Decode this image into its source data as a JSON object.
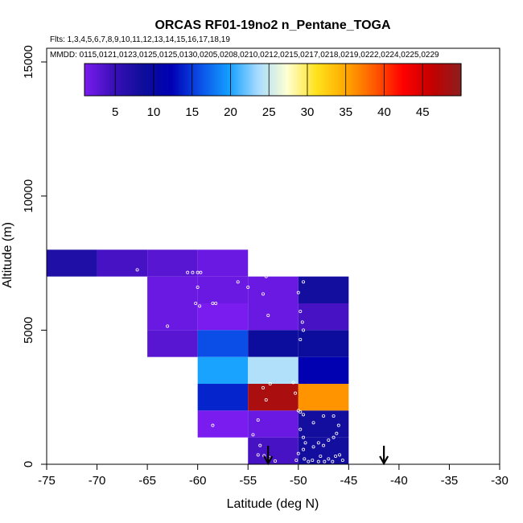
{
  "chart_data": {
    "type": "heatmap",
    "title": "ORCAS RF01-19no2 n_Pentane_TOGA",
    "flights_line": "Flts: 1,3,4,5,6,7,8,9,10,11,12,13,14,15,16,17,18,19",
    "dates_line": "MMDD: 0115,0121,0123,0125,0125,0130,0205,0208,0210,0212,0215,0217,0218,0219,0222,0224,0225,0229",
    "xlabel": "Latitude (deg N)",
    "ylabel": "Altitude (m)",
    "xlim": [
      -75,
      -30
    ],
    "ylim": [
      0,
      15000
    ],
    "xticks": [
      "-75",
      "-70",
      "-65",
      "-60",
      "-55",
      "-50",
      "-45",
      "-40",
      "-35",
      "-30"
    ],
    "yticks": [
      "0",
      "5000",
      "10000",
      "15000"
    ],
    "colorbar": {
      "range": [
        1,
        50
      ],
      "ticks": [
        "5",
        "10",
        "15",
        "20",
        "25",
        "30",
        "35",
        "40",
        "45"
      ],
      "colors": [
        "#7a1cf0",
        "#3a10b8",
        "#0e0e9a",
        "#0000b4",
        "#0b50e8",
        "#14a0ff",
        "#a8dcff",
        "#ffffd2",
        "#ffe21e",
        "#ffaa00",
        "#ff5a00",
        "#ff0000",
        "#c40000",
        "#8c1e1e"
      ]
    },
    "bin_size": {
      "lat": 5,
      "alt": 1000
    },
    "cells": [
      {
        "lat": -72.5,
        "alt": 7500,
        "value": 7
      },
      {
        "lat": -67.5,
        "alt": 7500,
        "value": 4
      },
      {
        "lat": -62.5,
        "alt": 7500,
        "value": 3
      },
      {
        "lat": -57.5,
        "alt": 7500,
        "value": 2
      },
      {
        "lat": -62.5,
        "alt": 6500,
        "value": 2
      },
      {
        "lat": -57.5,
        "alt": 6500,
        "value": 2
      },
      {
        "lat": -52.5,
        "alt": 6500,
        "value": 2
      },
      {
        "lat": -47.5,
        "alt": 6500,
        "value": 8
      },
      {
        "lat": -62.5,
        "alt": 5500,
        "value": 2
      },
      {
        "lat": -57.5,
        "alt": 5500,
        "value": 1
      },
      {
        "lat": -52.5,
        "alt": 5500,
        "value": 2
      },
      {
        "lat": -47.5,
        "alt": 5500,
        "value": 4
      },
      {
        "lat": -62.5,
        "alt": 4500,
        "value": 3
      },
      {
        "lat": -57.5,
        "alt": 4500,
        "value": 16
      },
      {
        "lat": -52.5,
        "alt": 4500,
        "value": 9
      },
      {
        "lat": -47.5,
        "alt": 4500,
        "value": 9
      },
      {
        "lat": -57.5,
        "alt": 3500,
        "value": 20
      },
      {
        "lat": -52.5,
        "alt": 3500,
        "value": 24
      },
      {
        "lat": -47.5,
        "alt": 3500,
        "value": 12
      },
      {
        "lat": -57.5,
        "alt": 2500,
        "value": 14
      },
      {
        "lat": -52.5,
        "alt": 2500,
        "value": 48
      },
      {
        "lat": -47.5,
        "alt": 2500,
        "value": 36
      },
      {
        "lat": -57.5,
        "alt": 1500,
        "value": 1
      },
      {
        "lat": -52.5,
        "alt": 1500,
        "value": 2
      },
      {
        "lat": -47.5,
        "alt": 1500,
        "value": 8
      },
      {
        "lat": -52.5,
        "alt": 500,
        "value": 4
      },
      {
        "lat": -47.5,
        "alt": 500,
        "value": 8
      }
    ],
    "points": [
      [
        -66.0,
        7250
      ],
      [
        -61.0,
        7150
      ],
      [
        -60.5,
        7150
      ],
      [
        -60.0,
        7150
      ],
      [
        -59.7,
        7150
      ],
      [
        -60.0,
        6600
      ],
      [
        -60.2,
        6000
      ],
      [
        -59.8,
        5900
      ],
      [
        -58.5,
        6000
      ],
      [
        -58.2,
        6000
      ],
      [
        -63.0,
        5150
      ],
      [
        -56.0,
        6800
      ],
      [
        -55.0,
        6600
      ],
      [
        -53.5,
        6350
      ],
      [
        -53.0,
        5550
      ],
      [
        -53.2,
        7000
      ],
      [
        -53.0,
        7500
      ],
      [
        -49.5,
        6800
      ],
      [
        -50.0,
        6400
      ],
      [
        -49.8,
        5700
      ],
      [
        -49.6,
        5300
      ],
      [
        -49.8,
        4650
      ],
      [
        -49.5,
        5000
      ],
      [
        -50.5,
        3050
      ],
      [
        -50.3,
        2650
      ],
      [
        -50.0,
        2000
      ],
      [
        -49.8,
        1950
      ],
      [
        -49.5,
        1850
      ],
      [
        -53.5,
        2850
      ],
      [
        -53.2,
        2400
      ],
      [
        -54.0,
        1650
      ],
      [
        -58.5,
        1450
      ],
      [
        -54.5,
        1100
      ],
      [
        -52.8,
        3000
      ],
      [
        -48.5,
        1550
      ],
      [
        -47.5,
        1800
      ],
      [
        -46.5,
        1800
      ],
      [
        -46.0,
        1450
      ],
      [
        -46.2,
        1150
      ],
      [
        -46.5,
        1000
      ],
      [
        -47.0,
        900
      ],
      [
        -47.5,
        700
      ],
      [
        -48.0,
        800
      ],
      [
        -48.5,
        650
      ],
      [
        -49.3,
        800
      ],
      [
        -49.5,
        1000
      ],
      [
        -49.8,
        1300
      ],
      [
        -49.5,
        550
      ],
      [
        -50.0,
        400
      ],
      [
        -50.2,
        150
      ],
      [
        -49.4,
        200
      ],
      [
        -49.0,
        100
      ],
      [
        -48.6,
        150
      ],
      [
        -48.0,
        100
      ],
      [
        -47.8,
        300
      ],
      [
        -47.4,
        100
      ],
      [
        -47.0,
        200
      ],
      [
        -46.6,
        100
      ],
      [
        -46.3,
        300
      ],
      [
        -45.9,
        350
      ],
      [
        -45.6,
        150
      ],
      [
        -53.8,
        700
      ],
      [
        -54.0,
        350
      ],
      [
        -53.4,
        320
      ],
      [
        -52.9,
        250
      ],
      [
        -52.3,
        120
      ]
    ],
    "arrows": [
      -53.0,
      -41.5
    ]
  }
}
